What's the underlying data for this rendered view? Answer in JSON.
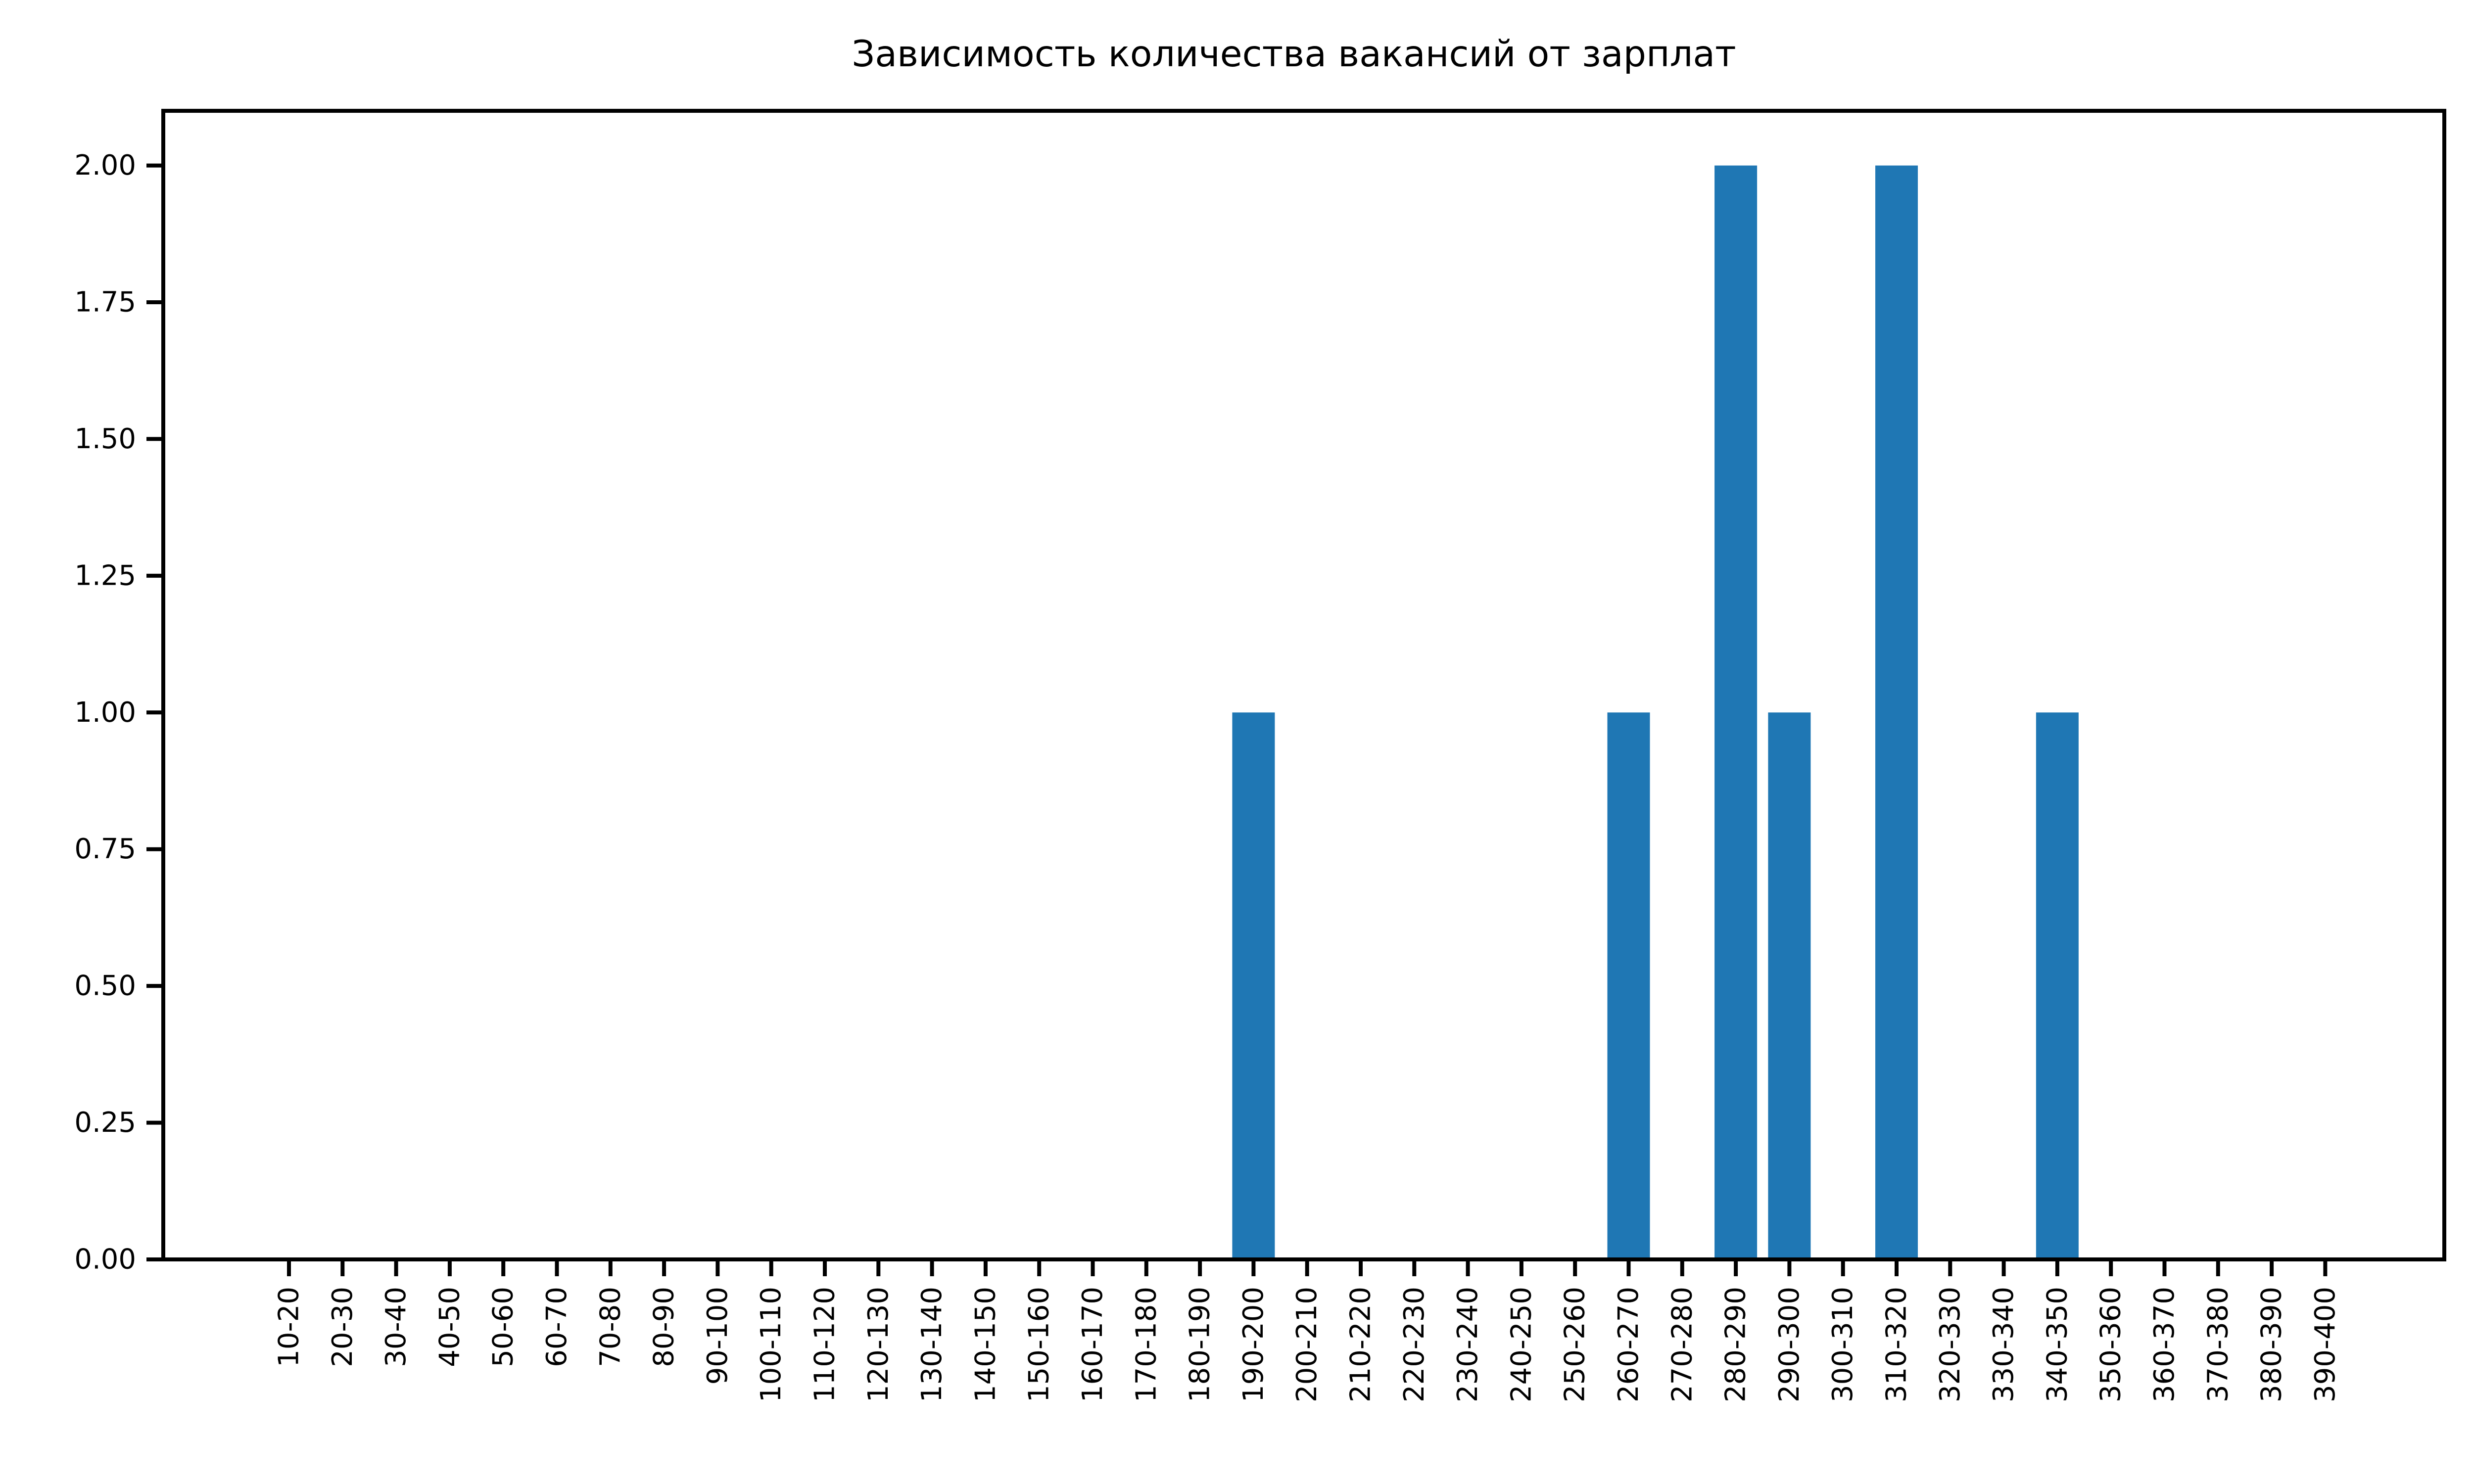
{
  "chart_data": {
    "type": "bar",
    "title": "Зависимость количества вакансий от зарплат",
    "xlabel": "",
    "ylabel": "",
    "categories": [
      "10-20",
      "20-30",
      "30-40",
      "40-50",
      "50-60",
      "60-70",
      "70-80",
      "80-90",
      "90-100",
      "100-110",
      "110-120",
      "120-130",
      "130-140",
      "140-150",
      "150-160",
      "160-170",
      "170-180",
      "180-190",
      "190-200",
      "200-210",
      "210-220",
      "220-230",
      "230-240",
      "240-250",
      "250-260",
      "260-270",
      "270-280",
      "280-290",
      "290-300",
      "300-310",
      "310-320",
      "320-330",
      "330-340",
      "340-350",
      "350-360",
      "360-370",
      "370-380",
      "380-390",
      "390-400"
    ],
    "values": [
      0,
      0,
      0,
      0,
      0,
      0,
      0,
      0,
      0,
      0,
      0,
      0,
      0,
      0,
      0,
      0,
      0,
      0,
      1,
      0,
      0,
      0,
      0,
      0,
      0,
      1,
      0,
      2,
      1,
      0,
      2,
      0,
      0,
      1,
      0,
      0,
      0,
      0,
      0
    ],
    "ylim": [
      0,
      2.1
    ],
    "yticks": [
      "0.00",
      "0.25",
      "0.50",
      "0.75",
      "1.00",
      "1.25",
      "1.50",
      "1.75",
      "2.00"
    ],
    "grid": false,
    "colors": {
      "bar": "#1f77b4",
      "axes": "#000000",
      "background": "#ffffff"
    }
  }
}
